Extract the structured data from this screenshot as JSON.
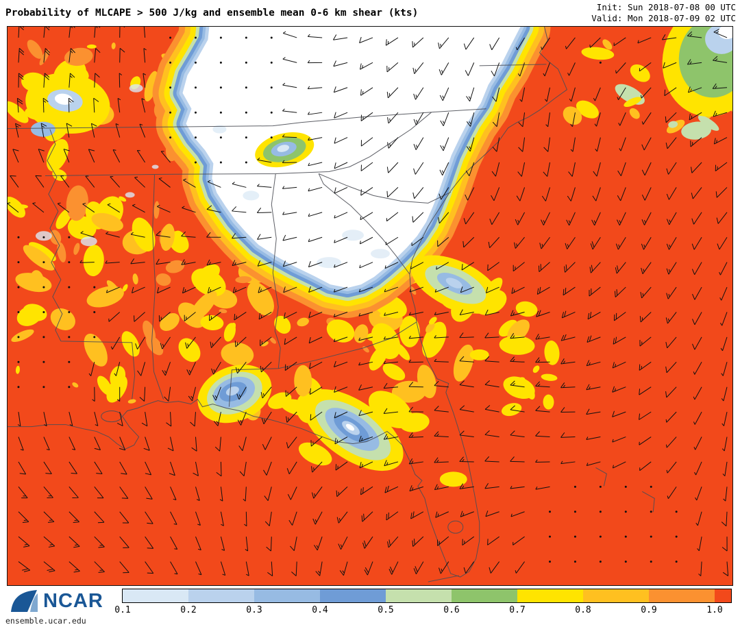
{
  "header": {
    "title": "Probability of MLCAPE > 500 J/kg and ensemble mean 0-6 km shear (kts)",
    "init": "Init: Sun 2018-07-08 00 UTC",
    "valid": "Valid: Mon 2018-07-09 02 UTC"
  },
  "footer": {
    "brand": "NCAR",
    "site": "ensemble.ucar.edu"
  },
  "chart_data": {
    "type": "heatmap",
    "title": "Probability of MLCAPE > 500 J/kg and ensemble mean 0-6 km shear (kts)",
    "variable_shaded": "Probability of MLCAPE > 500 J/kg",
    "variable_overlay": "Ensemble mean 0-6 km shear (kts), plotted as wind barbs",
    "init_time": "Sun 2018-07-08 00 UTC",
    "valid_time": "Mon 2018-07-09 02 UTC",
    "region": "Southeastern United States: Tennessee, Carolinas, Georgia, Alabama, Mississippi, Louisiana, Florida, Gulf of Mexico and western Atlantic",
    "colorbar": {
      "orientation": "horizontal, bottom",
      "tick_labels": [
        "0.1",
        "0.2",
        "0.3",
        "0.4",
        "0.5",
        "0.6",
        "0.7",
        "0.8",
        "0.9",
        "1.0"
      ],
      "segment_colors": [
        "#D9E8F5",
        "#BAD2ED",
        "#97BBE3",
        "#6F9CD6",
        "#C5E0AD",
        "#8EC46B",
        "#FFE400",
        "#FFC020",
        "#FB9130"
      ],
      "max_color": "#F2491B",
      "below_min_color": "#FFFFFF"
    },
    "pattern_summary": [
      {
        "region": "Carolinas, eastern Tennessee, northern Georgia and nearby Atlantic coastal waters",
        "value": "probability < 0.1 (large white minimum ringed by a 0.1-0.9 color gradient)"
      },
      {
        "region": "Most of the remaining domain (Mississippi valley, Alabama, Florida, Gulf of Mexico, western Atlantic)",
        "value": "probability ~1.0 (solid red-orange) with scattered 0.7-0.9 yellow/orange mottling"
      },
      {
        "region": "Southern Mississippi coast and Florida panhandle coast near Apalachicola",
        "value": "local minima ~0.2-0.5 (blue patches with yellow/green rings)"
      },
      {
        "region": "Waters off the Georgia coast",
        "value": "local minimum ~0.3-0.7 (small blue/yellow spot)"
      },
      {
        "region": "Far northeast corner of the domain",
        "value": "local minimum < 0.3 (white/blue/green patch)"
      }
    ],
    "wind_barbs": {
      "units": "kts",
      "meaning": "ensemble mean 0-6 km shear",
      "style": "black wind barbs on a regular grid; calm points drawn as dots",
      "typical_range_kts": "0 to ~20"
    },
    "basemap": "state borders and coastlines drawn as thin dark gray lines"
  }
}
